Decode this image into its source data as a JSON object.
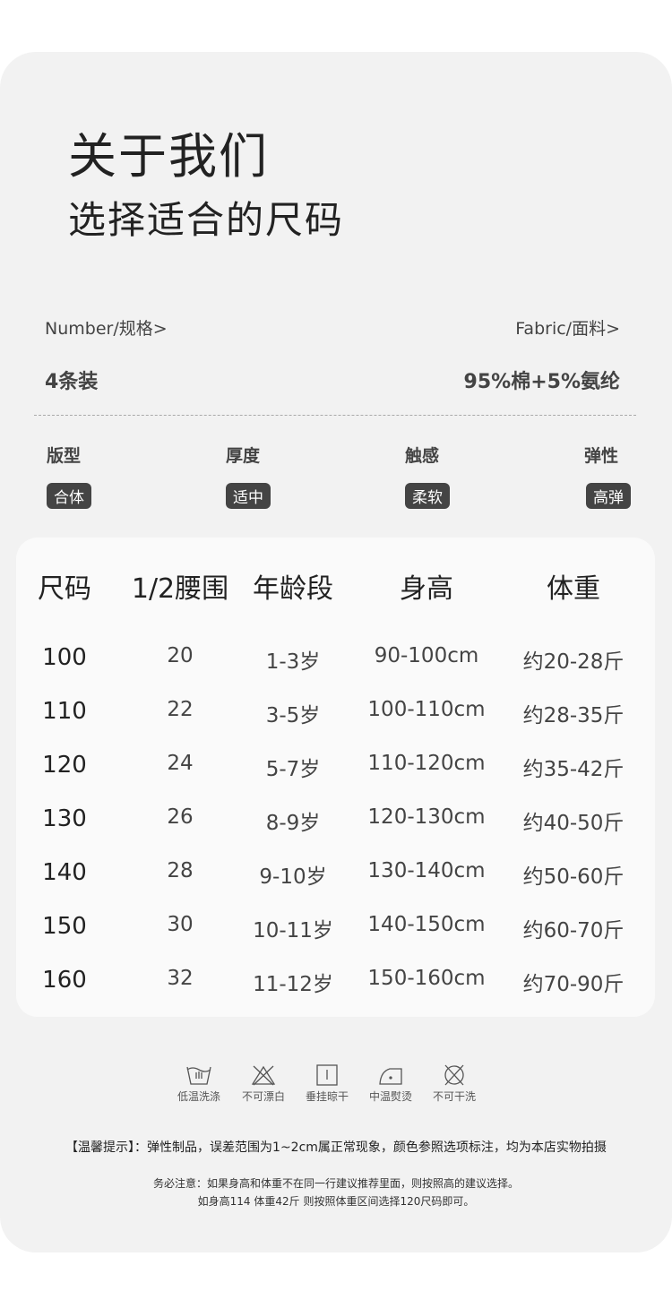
{
  "header": {
    "title": "关于我们",
    "subtitle": "选择适合的尺码"
  },
  "specs": {
    "number_label": "Number/规格>",
    "number_value": "4条装",
    "fabric_label": "Fabric/面料>",
    "fabric_value": "95%棉+5%氨纶"
  },
  "attributes": [
    {
      "label": "版型",
      "value": "合体"
    },
    {
      "label": "厚度",
      "value": "适中"
    },
    {
      "label": "触感",
      "value": "柔软"
    },
    {
      "label": "弹性",
      "value": "高弹"
    }
  ],
  "size_table": {
    "headers": [
      "尺码",
      "1/2腰围",
      "年龄段",
      "身高",
      "体重"
    ],
    "rows": [
      [
        "100",
        "20",
        "1-3岁",
        "90-100cm",
        "约20-28斤"
      ],
      [
        "110",
        "22",
        "3-5岁",
        "100-110cm",
        "约28-35斤"
      ],
      [
        "120",
        "24",
        "5-7岁",
        "110-120cm",
        "约35-42斤"
      ],
      [
        "130",
        "26",
        "8-9岁",
        "120-130cm",
        "约40-50斤"
      ],
      [
        "140",
        "28",
        "9-10岁",
        "130-140cm",
        "约50-60斤"
      ],
      [
        "150",
        "30",
        "10-11岁",
        "140-150cm",
        "约60-70斤"
      ],
      [
        "160",
        "32",
        "11-12岁",
        "150-160cm",
        "约70-90斤"
      ]
    ]
  },
  "care": [
    {
      "icon": "low-temp-wash-icon",
      "label": "低温洗涤"
    },
    {
      "icon": "no-bleach-icon",
      "label": "不可漂白"
    },
    {
      "icon": "hang-dry-icon",
      "label": "垂挂晾干"
    },
    {
      "icon": "medium-iron-icon",
      "label": "中温熨烫"
    },
    {
      "icon": "no-dry-clean-icon",
      "label": "不可干洗"
    }
  ],
  "notes": {
    "tip": "【温馨提示】：弹性制品，误差范围为1~2cm属正常现象，颜色参照选项标注，均为本店实物拍摄",
    "line1": "务必注意：如果身高和体重不在同一行建议推荐里面，则按照高的建议选择。",
    "line2": "如身高114 体重42斤 则按照体重区间选择120尺码即可。"
  }
}
